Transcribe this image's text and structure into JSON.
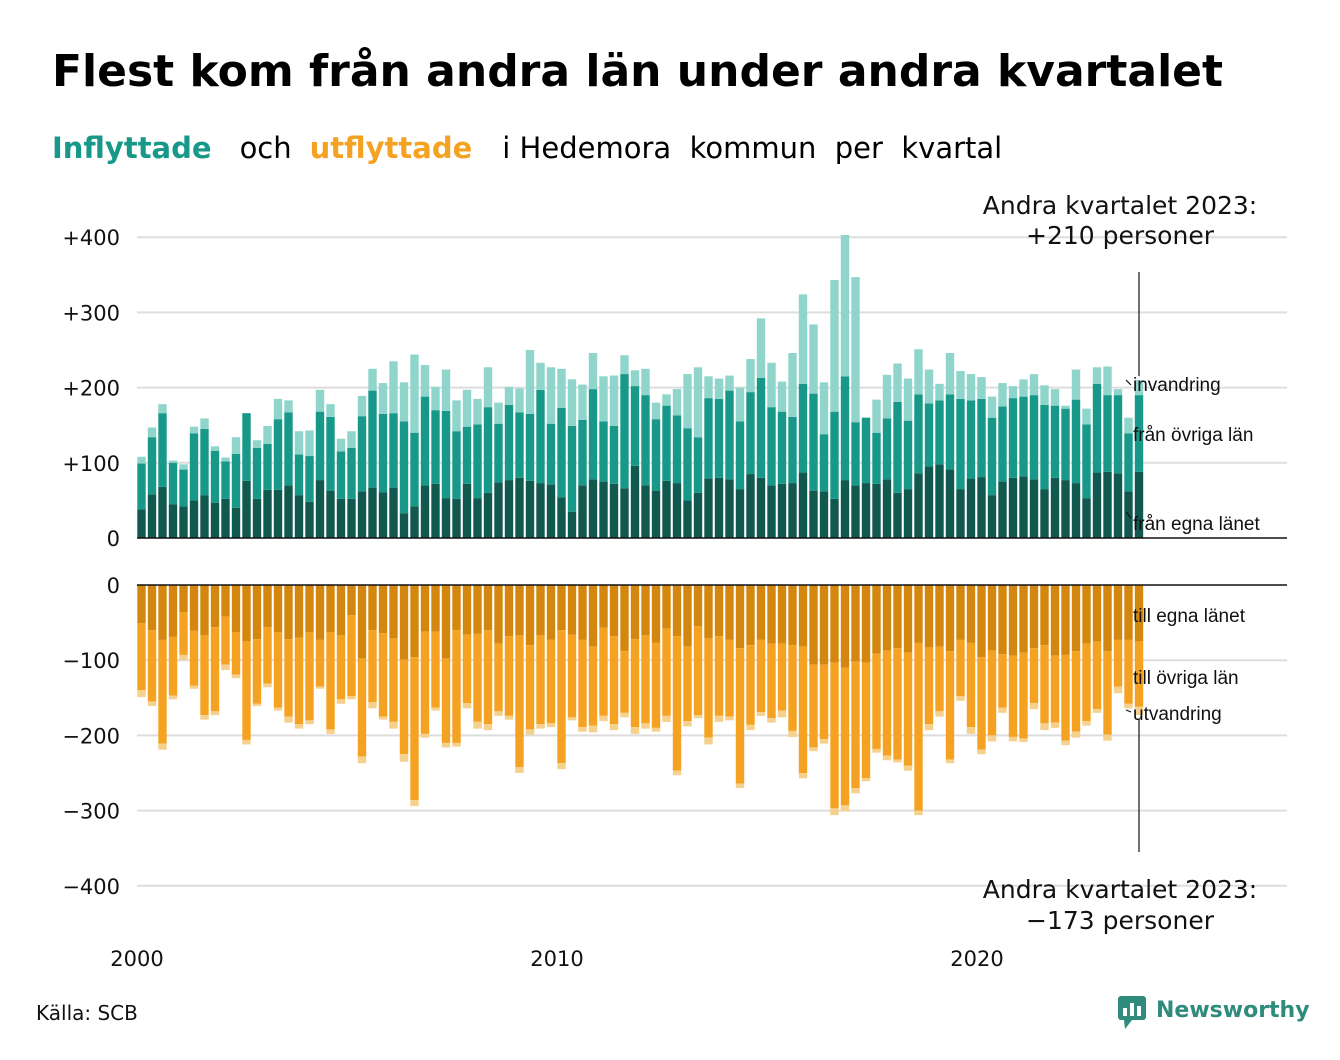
{
  "title": "Flest kom från andra län under andra kvartalet",
  "subtitle": {
    "in_word": "Inflyttade",
    "and_word": "och",
    "out_word": "utflyttade",
    "rest": "i Hedemora  kommun  per  kvartal"
  },
  "colors": {
    "in_own": "#11594e",
    "in_other": "#179889",
    "in_immigration": "#8fd5cb",
    "out_own": "#d4870e",
    "out_other": "#f5a222",
    "out_emigration": "#f6d08d",
    "in_word": "#179889",
    "out_word": "#f5a222"
  },
  "annotations": {
    "top_line1": "Andra kvartalet 2023:",
    "top_line2": "+210 personer",
    "bottom_line1": "Andra kvartalet 2023:",
    "bottom_line2": "−173 personer"
  },
  "segment_labels": {
    "in_immigration": "invandring",
    "in_other": "från övriga län",
    "in_own": "från egna länet",
    "out_own": "till egna länet",
    "out_other": "till övriga län",
    "out_emigration": "utvandring"
  },
  "source": "Källa: SCB",
  "brand": "Newsworthy",
  "chart_data": {
    "type": "bar",
    "stacked": true,
    "grid": true,
    "x_start": "2000Q1",
    "x_end": "2023Q2",
    "x_ticks": [
      "2000",
      "2010",
      "2020"
    ],
    "top_panel": {
      "y_ticks": [
        "+400",
        "+300",
        "+200",
        "+100",
        "0"
      ],
      "ylim": [
        0,
        400
      ],
      "series": [
        {
          "name": "från egna länet",
          "values": [
            38,
            58,
            68,
            45,
            42,
            50,
            57,
            47,
            52,
            40,
            76,
            52,
            64,
            64,
            70,
            57,
            48,
            77,
            63,
            52,
            52,
            62,
            67,
            61,
            67,
            33,
            42,
            70,
            72,
            53,
            52,
            72,
            53,
            60,
            74,
            77,
            80,
            76,
            73,
            71,
            54,
            35,
            70,
            78,
            75,
            72,
            66,
            96,
            70,
            63,
            76,
            73,
            50,
            60,
            79,
            80,
            78,
            65,
            85,
            80,
            70,
            72,
            73,
            87,
            63,
            62,
            52,
            77,
            70,
            73,
            72,
            78,
            60,
            65,
            86,
            95,
            98,
            91,
            65,
            79,
            81,
            57,
            75,
            80,
            82,
            78,
            65,
            80,
            77,
            73,
            53,
            87,
            88,
            86,
            62,
            88
          ]
        },
        {
          "name": "från övriga län",
          "values": [
            61,
            76,
            98,
            55,
            49,
            89,
            88,
            69,
            50,
            72,
            90,
            68,
            61,
            94,
            97,
            54,
            61,
            91,
            98,
            63,
            68,
            100,
            129,
            104,
            99,
            122,
            98,
            118,
            98,
            116,
            90,
            76,
            98,
            114,
            78,
            100,
            87,
            89,
            124,
            81,
            119,
            114,
            87,
            120,
            80,
            77,
            152,
            106,
            120,
            95,
            100,
            90,
            96,
            74,
            107,
            105,
            118,
            90,
            109,
            133,
            104,
            96,
            88,
            118,
            129,
            76,
            116,
            138,
            84,
            87,
            68,
            81,
            121,
            91,
            105,
            84,
            85,
            100,
            120,
            104,
            104,
            103,
            100,
            106,
            106,
            112,
            112,
            96,
            95,
            111,
            98,
            118,
            102,
            104,
            77,
            102
          ]
        },
        {
          "name": "invandring",
          "values": [
            9,
            13,
            12,
            3,
            7,
            9,
            14,
            6,
            5,
            22,
            0,
            10,
            24,
            27,
            16,
            31,
            34,
            29,
            17,
            17,
            22,
            27,
            29,
            41,
            69,
            52,
            104,
            42,
            31,
            55,
            41,
            49,
            34,
            53,
            28,
            24,
            32,
            85,
            36,
            75,
            52,
            62,
            47,
            48,
            60,
            67,
            25,
            21,
            35,
            22,
            15,
            35,
            72,
            93,
            29,
            27,
            20,
            45,
            44,
            79,
            59,
            40,
            85,
            119,
            92,
            69,
            175,
            188,
            193,
            0,
            44,
            58,
            51,
            56,
            60,
            45,
            22,
            55,
            37,
            35,
            29,
            28,
            31,
            16,
            23,
            28,
            26,
            22,
            4,
            40,
            21,
            22,
            38,
            8,
            21,
            20
          ]
        }
      ]
    },
    "bottom_panel": {
      "y_ticks": [
        "0",
        "−100",
        "−200",
        "−300",
        "−400"
      ],
      "ylim": [
        -400,
        0
      ],
      "series": [
        {
          "name": "till egna länet",
          "values": [
            -51,
            -60,
            -73,
            -69,
            -36,
            -61,
            -67,
            -56,
            -42,
            -63,
            -75,
            -72,
            -56,
            -63,
            -72,
            -70,
            -63,
            -73,
            -63,
            -67,
            -40,
            -98,
            -60,
            -64,
            -71,
            -99,
            -96,
            -62,
            -62,
            -98,
            -60,
            -66,
            -65,
            -60,
            -78,
            -68,
            -67,
            -80,
            -67,
            -73,
            -60,
            -66,
            -73,
            -82,
            -57,
            -68,
            -88,
            -72,
            -67,
            -77,
            -58,
            -68,
            -82,
            -55,
            -71,
            -68,
            -73,
            -84,
            -80,
            -73,
            -78,
            -78,
            -80,
            -82,
            -106,
            -106,
            -103,
            -110,
            -102,
            -103,
            -91,
            -87,
            -84,
            -90,
            -77,
            -83,
            -82,
            -88,
            -73,
            -77,
            -96,
            -87,
            -92,
            -94,
            -90,
            -84,
            -80,
            -94,
            -93,
            -88,
            -78,
            -75,
            -88,
            -73,
            -73,
            -75
          ]
        },
        {
          "name": "till övriga län",
          "values": [
            -89,
            -95,
            -138,
            -78,
            -57,
            -73,
            -106,
            -112,
            -64,
            -56,
            -131,
            -86,
            -75,
            -100,
            -103,
            -115,
            -117,
            -62,
            -129,
            -85,
            -108,
            -130,
            -96,
            -111,
            -111,
            -126,
            -190,
            -136,
            -101,
            -112,
            -150,
            -91,
            -117,
            -125,
            -90,
            -106,
            -175,
            -112,
            -118,
            -111,
            -177,
            -110,
            -116,
            -105,
            -117,
            -117,
            -82,
            -117,
            -117,
            -113,
            -116,
            -179,
            -99,
            -118,
            -132,
            -106,
            -102,
            -180,
            -106,
            -96,
            -99,
            -89,
            -114,
            -168,
            -110,
            -99,
            -194,
            -183,
            -168,
            -154,
            -127,
            -140,
            -148,
            -150,
            -223,
            -102,
            -86,
            -144,
            -75,
            -112,
            -123,
            -113,
            -71,
            -108,
            -114,
            -73,
            -104,
            -89,
            -114,
            -107,
            -103,
            -90,
            -111,
            -62,
            -85,
            -87
          ]
        },
        {
          "name": "utvandring",
          "values": [
            -9,
            -6,
            -8,
            -5,
            -7,
            -4,
            -6,
            -5,
            -7,
            -5,
            -6,
            -3,
            -5,
            -4,
            -8,
            -6,
            -5,
            -3,
            -6,
            -6,
            -4,
            -9,
            -8,
            -4,
            -9,
            -10,
            -8,
            -5,
            -4,
            -6,
            -5,
            -7,
            -9,
            -8,
            -6,
            -5,
            -8,
            -7,
            -6,
            -5,
            -8,
            -4,
            -6,
            -9,
            -7,
            -8,
            -6,
            -9,
            -7,
            -5,
            -8,
            -6,
            -7,
            -4,
            -9,
            -8,
            -5,
            -6,
            -7,
            -5,
            -6,
            -9,
            -8,
            -7,
            -5,
            -6,
            -9,
            -8,
            -7,
            -4,
            -5,
            -6,
            -4,
            -7,
            -6,
            -8,
            -7,
            -5,
            -6,
            -9,
            -6,
            -8,
            -7,
            -6,
            -5,
            -8,
            -9,
            -7,
            -6,
            -8,
            -6,
            -5,
            -8,
            -9,
            -6,
            -11
          ]
        }
      ]
    }
  }
}
